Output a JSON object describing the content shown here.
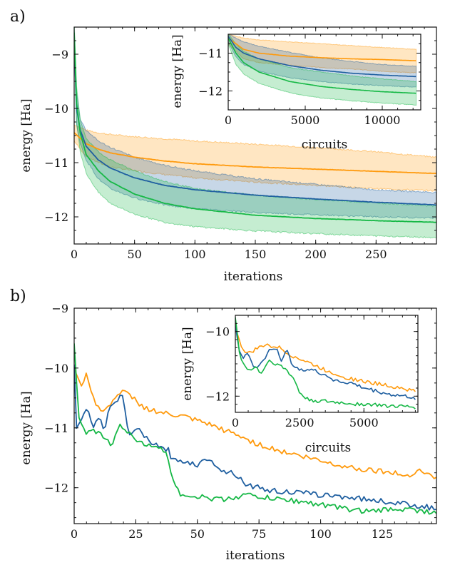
{
  "chart_data": [
    {
      "panel": "a)",
      "type": "line",
      "xlabel": "iterations",
      "ylabel": "energy [Ha]",
      "xlim": [
        0,
        300
      ],
      "ylim": [
        -12.5,
        -8.5
      ],
      "xticks": [
        "0",
        "50",
        "100",
        "150",
        "200",
        "250"
      ],
      "yticks": [
        "−9",
        "−10",
        "−11",
        "−12"
      ],
      "shaded_bands": true,
      "series": [
        {
          "name": "orange",
          "color": "#ff9a0d",
          "x": [
            0,
            5,
            10,
            20,
            30,
            50,
            75,
            100,
            150,
            200,
            250,
            300
          ],
          "mean": [
            -10.45,
            -10.55,
            -10.65,
            -10.75,
            -10.82,
            -10.9,
            -10.97,
            -11.02,
            -11.08,
            -11.12,
            -11.16,
            -11.2
          ],
          "upper": [
            -10.3,
            -10.35,
            -10.4,
            -10.45,
            -10.48,
            -10.52,
            -10.56,
            -10.6,
            -10.66,
            -10.72,
            -10.8,
            -10.9
          ],
          "lower": [
            -10.6,
            -10.75,
            -10.88,
            -11.0,
            -11.08,
            -11.15,
            -11.22,
            -11.28,
            -11.36,
            -11.42,
            -11.48,
            -11.52
          ]
        },
        {
          "name": "blue",
          "color": "#1f5fa0",
          "x": [
            0,
            2,
            5,
            10,
            20,
            30,
            50,
            75,
            100,
            150,
            200,
            250,
            300
          ],
          "mean": [
            -8.7,
            -10.0,
            -10.4,
            -10.7,
            -10.95,
            -11.1,
            -11.28,
            -11.42,
            -11.5,
            -11.6,
            -11.67,
            -11.73,
            -11.78
          ],
          "upper": [
            -8.5,
            -9.7,
            -10.2,
            -10.4,
            -10.6,
            -10.72,
            -10.9,
            -11.05,
            -11.15,
            -11.3,
            -11.4,
            -11.5,
            -11.55
          ],
          "lower": [
            -8.9,
            -10.3,
            -10.65,
            -10.95,
            -11.3,
            -11.48,
            -11.65,
            -11.78,
            -11.85,
            -11.92,
            -11.96,
            -12.0,
            -12.02
          ]
        },
        {
          "name": "green",
          "color": "#16b846",
          "x": [
            0,
            2,
            5,
            10,
            20,
            30,
            50,
            75,
            100,
            150,
            200,
            250,
            300
          ],
          "mean": [
            -8.6,
            -9.9,
            -10.45,
            -10.85,
            -11.15,
            -11.35,
            -11.58,
            -11.75,
            -11.85,
            -11.97,
            -12.03,
            -12.07,
            -12.1
          ],
          "upper": [
            -8.4,
            -9.6,
            -10.2,
            -10.55,
            -10.8,
            -10.95,
            -11.15,
            -11.35,
            -11.48,
            -11.6,
            -11.68,
            -11.74,
            -11.8
          ],
          "lower": [
            -8.8,
            -10.25,
            -10.8,
            -11.2,
            -11.55,
            -11.75,
            -11.95,
            -12.1,
            -12.18,
            -12.26,
            -12.31,
            -12.35,
            -12.38
          ]
        }
      ],
      "inset": {
        "xlabel": "circuits",
        "ylabel": "energy [Ha]",
        "xlim": [
          0,
          12500
        ],
        "ylim": [
          -12.5,
          -10.5
        ],
        "xticks": [
          "0",
          "5000",
          "10000"
        ],
        "yticks": [
          "−11",
          "−12"
        ],
        "series": [
          {
            "name": "orange",
            "color": "#ff9a0d",
            "x": [
              0,
              1000,
              2000,
              4000,
              6000,
              8000,
              10000,
              12200
            ],
            "mean": [
              -10.6,
              -10.9,
              -11.0,
              -11.08,
              -11.12,
              -11.15,
              -11.17,
              -11.2
            ],
            "upper": [
              -10.5,
              -10.6,
              -10.65,
              -10.7,
              -10.75,
              -10.8,
              -10.85,
              -10.9
            ],
            "lower": [
              -10.75,
              -11.15,
              -11.25,
              -11.32,
              -11.38,
              -11.42,
              -11.48,
              -11.52
            ]
          },
          {
            "name": "blue",
            "color": "#1f5fa0",
            "x": [
              0,
              500,
              1000,
              2000,
              4000,
              6000,
              8000,
              10000,
              12200
            ],
            "mean": [
              -10.55,
              -10.85,
              -11.0,
              -11.15,
              -11.33,
              -11.45,
              -11.53,
              -11.58,
              -11.62
            ],
            "upper": [
              -10.5,
              -10.6,
              -10.7,
              -10.82,
              -10.98,
              -11.12,
              -11.22,
              -11.3,
              -11.35
            ],
            "lower": [
              -10.7,
              -11.1,
              -11.3,
              -11.48,
              -11.65,
              -11.75,
              -11.82,
              -11.86,
              -11.9
            ]
          },
          {
            "name": "green",
            "color": "#16b846",
            "x": [
              0,
              500,
              1000,
              2000,
              4000,
              6000,
              8000,
              10000,
              12200
            ],
            "mean": [
              -10.6,
              -11.0,
              -11.25,
              -11.5,
              -11.75,
              -11.88,
              -11.96,
              -12.02,
              -12.06
            ],
            "upper": [
              -10.5,
              -10.75,
              -10.95,
              -11.15,
              -11.38,
              -11.5,
              -11.6,
              -11.68,
              -11.75
            ],
            "lower": [
              -10.75,
              -11.3,
              -11.55,
              -11.8,
              -12.05,
              -12.18,
              -12.26,
              -12.32,
              -12.37
            ]
          }
        ]
      }
    },
    {
      "panel": "b)",
      "type": "line",
      "xlabel": "iterations",
      "ylabel": "energy [Ha]",
      "xlim": [
        0,
        147
      ],
      "ylim": [
        -12.6,
        -9.0
      ],
      "xticks": [
        "0",
        "25",
        "50",
        "75",
        "100",
        "125"
      ],
      "yticks": [
        "−9",
        "−10",
        "−11",
        "−12"
      ],
      "series": [
        {
          "name": "orange",
          "color": "#ff9a0d",
          "x": [
            0,
            3,
            5,
            8,
            12,
            16,
            20,
            24,
            28,
            35,
            45,
            55,
            65,
            75,
            85,
            95,
            105,
            115,
            125,
            135,
            140,
            147
          ],
          "y": [
            -10.0,
            -10.35,
            -10.05,
            -10.55,
            -10.75,
            -10.5,
            -10.4,
            -10.5,
            -10.65,
            -10.75,
            -10.82,
            -10.95,
            -11.1,
            -11.28,
            -11.4,
            -11.5,
            -11.6,
            -11.68,
            -11.72,
            -11.8,
            -11.7,
            -11.85
          ]
        },
        {
          "name": "blue",
          "color": "#1f5fa0",
          "x": [
            0,
            1,
            3,
            5,
            8,
            10,
            12,
            15,
            18,
            20,
            22,
            25,
            30,
            35,
            38,
            40,
            45,
            50,
            55,
            60,
            65,
            70,
            80,
            90,
            100,
            110,
            120,
            130,
            140,
            147
          ],
          "y": [
            -9.9,
            -11.0,
            -10.9,
            -10.65,
            -11.0,
            -10.8,
            -11.05,
            -10.6,
            -10.5,
            -10.5,
            -11.15,
            -11.0,
            -11.2,
            -11.35,
            -11.35,
            -11.55,
            -11.55,
            -11.62,
            -11.5,
            -11.72,
            -11.75,
            -11.95,
            -12.05,
            -12.08,
            -12.12,
            -12.15,
            -12.2,
            -12.25,
            -12.3,
            -12.35
          ]
        },
        {
          "name": "green",
          "color": "#16b846",
          "x": [
            0,
            2,
            5,
            8,
            12,
            15,
            18,
            22,
            28,
            32,
            35,
            38,
            40,
            43,
            50,
            60,
            70,
            80,
            90,
            100,
            110,
            120,
            130,
            140,
            147
          ],
          "y": [
            -9.6,
            -10.9,
            -11.1,
            -11.05,
            -11.15,
            -11.3,
            -10.95,
            -11.1,
            -11.25,
            -11.35,
            -11.3,
            -11.5,
            -11.85,
            -12.1,
            -12.15,
            -12.2,
            -12.12,
            -12.18,
            -12.22,
            -12.28,
            -12.35,
            -12.4,
            -12.35,
            -12.38,
            -12.42
          ]
        }
      ],
      "inset": {
        "xlabel": "circuits",
        "ylabel": "energy [Ha]",
        "xlim": [
          0,
          7100
        ],
        "ylim": [
          -12.5,
          -9.5
        ],
        "xticks": [
          "0",
          "2500",
          "5000"
        ],
        "yticks": [
          "−10",
          "−12"
        ],
        "series": [
          {
            "name": "orange",
            "color": "#ff9a0d",
            "x": [
              0,
              150,
              300,
              500,
              800,
              1200,
              1700,
              2200,
              2800,
              3500,
              4200,
              5000,
              5800,
              6500,
              7000
            ],
            "y": [
              -9.9,
              -10.3,
              -10.55,
              -10.7,
              -10.55,
              -10.4,
              -10.5,
              -10.75,
              -10.95,
              -11.2,
              -11.4,
              -11.55,
              -11.65,
              -11.75,
              -11.85
            ]
          },
          {
            "name": "blue",
            "color": "#1f5fa0",
            "x": [
              0,
              150,
              300,
              500,
              800,
              1000,
              1300,
              1600,
              1800,
              2000,
              2200,
              2500,
              3000,
              3500,
              4000,
              4500,
              5000,
              5500,
              6000,
              6500,
              7000
            ],
            "y": [
              -9.8,
              -10.6,
              -10.8,
              -10.7,
              -11.2,
              -11.0,
              -10.6,
              -10.5,
              -10.9,
              -10.6,
              -11.0,
              -11.15,
              -11.2,
              -11.35,
              -11.55,
              -11.6,
              -11.75,
              -11.85,
              -11.95,
              -12.0,
              -12.05
            ]
          },
          {
            "name": "green",
            "color": "#16b846",
            "x": [
              0,
              150,
              300,
              500,
              800,
              1000,
              1300,
              1600,
              2000,
              2300,
              2500,
              2800,
              3200,
              4000,
              5000,
              6000,
              7000
            ],
            "y": [
              -9.6,
              -10.6,
              -11.0,
              -11.2,
              -11.1,
              -11.3,
              -10.9,
              -11.0,
              -11.2,
              -11.5,
              -11.9,
              -12.1,
              -12.15,
              -12.2,
              -12.25,
              -12.3,
              -12.35
            ]
          }
        ]
      }
    }
  ]
}
